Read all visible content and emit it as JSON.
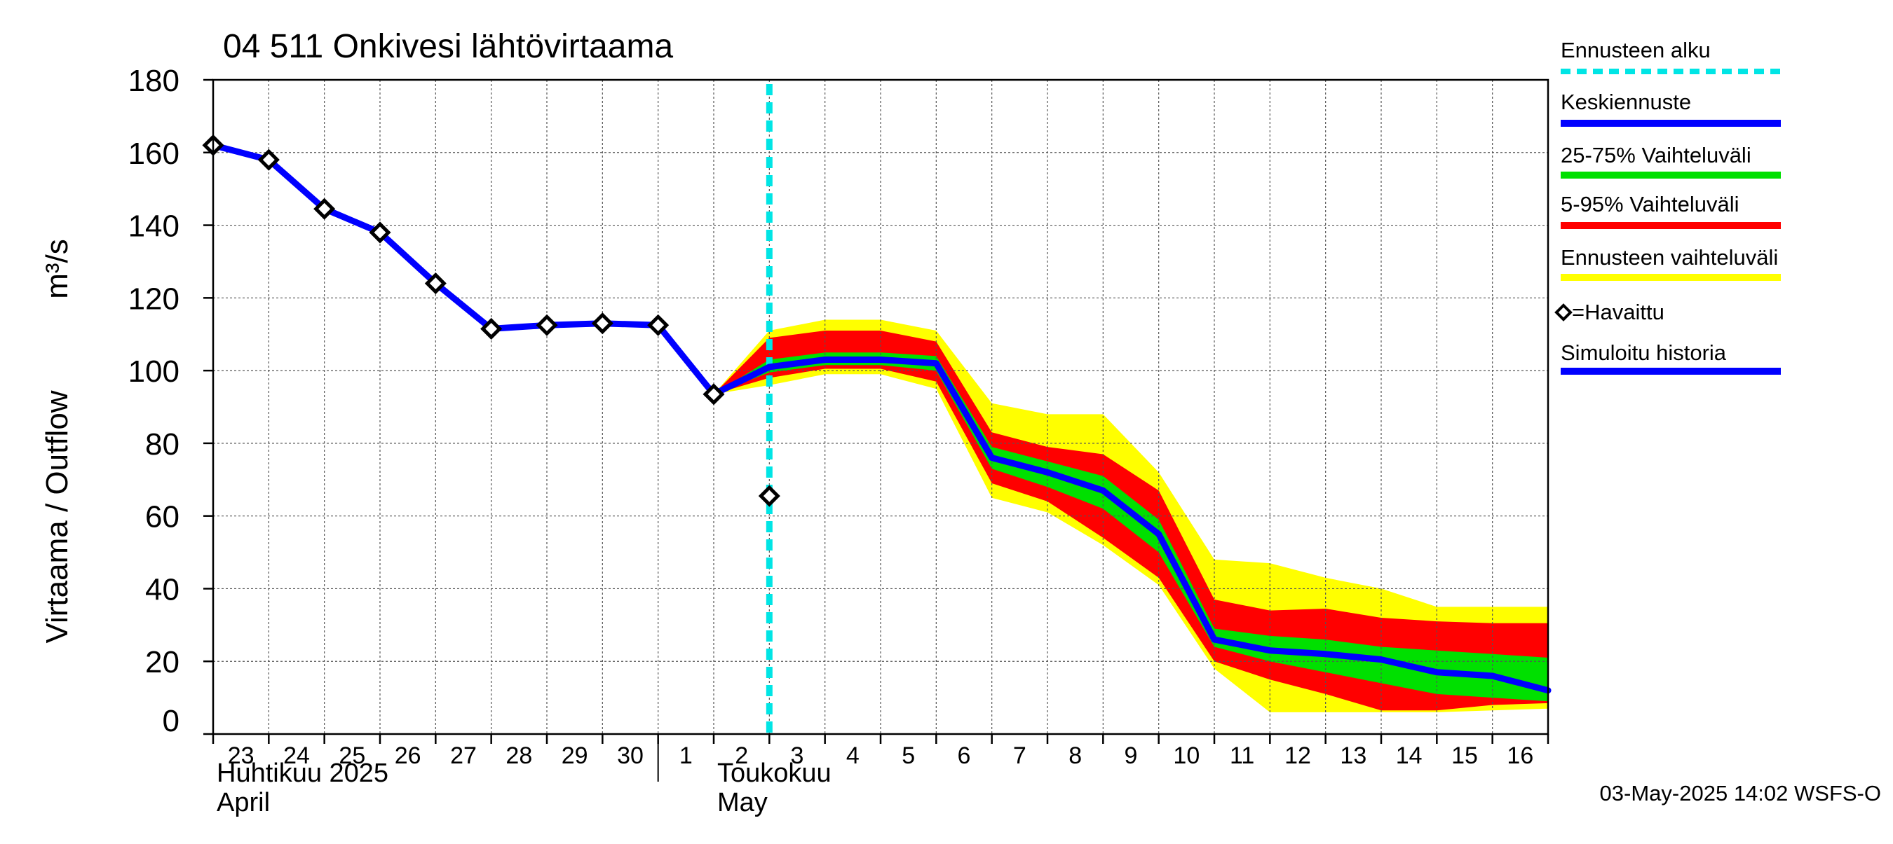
{
  "chart_data": {
    "type": "line",
    "title": "04 511 Onkivesi lähtövirtaama",
    "ylabel": "Virtaama / Outflow",
    "yunit": "m³/s",
    "ylim": [
      0,
      180
    ],
    "yticks": [
      0,
      20,
      40,
      60,
      80,
      100,
      120,
      140,
      160,
      180
    ],
    "xlim": [
      "2025-04-23",
      "2025-05-17"
    ],
    "xtick_labels": [
      {
        "date": "2025-04-23",
        "label": "23"
      },
      {
        "date": "2025-04-24",
        "label": "24"
      },
      {
        "date": "2025-04-25",
        "label": "25"
      },
      {
        "date": "2025-04-26",
        "label": "26"
      },
      {
        "date": "2025-04-27",
        "label": "27"
      },
      {
        "date": "2025-04-28",
        "label": "28"
      },
      {
        "date": "2025-04-29",
        "label": "29"
      },
      {
        "date": "2025-04-30",
        "label": "30"
      },
      {
        "date": "2025-05-01",
        "label": "1"
      },
      {
        "date": "2025-05-02",
        "label": "2"
      },
      {
        "date": "2025-05-03",
        "label": "3"
      },
      {
        "date": "2025-05-04",
        "label": "4"
      },
      {
        "date": "2025-05-05",
        "label": "5"
      },
      {
        "date": "2025-05-06",
        "label": "6"
      },
      {
        "date": "2025-05-07",
        "label": "7"
      },
      {
        "date": "2025-05-08",
        "label": "8"
      },
      {
        "date": "2025-05-09",
        "label": "9"
      },
      {
        "date": "2025-05-10",
        "label": "10"
      },
      {
        "date": "2025-05-11",
        "label": "11"
      },
      {
        "date": "2025-05-12",
        "label": "12"
      },
      {
        "date": "2025-05-13",
        "label": "13"
      },
      {
        "date": "2025-05-14",
        "label": "14"
      },
      {
        "date": "2025-05-15",
        "label": "15"
      },
      {
        "date": "2025-05-16",
        "label": "16"
      }
    ],
    "month_labels": [
      {
        "date": "2025-04-23",
        "line1": "Huhtikuu  2025",
        "line2": "April"
      },
      {
        "date": "2025-05-02",
        "line1": "Toukokuu",
        "line2": "May"
      }
    ],
    "month_divider": "2025-05-01",
    "forecast_start": "2025-05-03",
    "grid": true,
    "legend_position": "right",
    "legend": [
      {
        "label": "Ennusteen alku",
        "color": "#00e5e5",
        "style": "dashed"
      },
      {
        "label": "Keskiennuste",
        "color": "#0000ff",
        "style": "solid"
      },
      {
        "label": "25-75% Vaihteluväli",
        "color": "#00e000",
        "style": "solid"
      },
      {
        "label": "5-95% Vaihteluväli",
        "color": "#ff0000",
        "style": "solid"
      },
      {
        "label": "Ennusteen vaihteluväli",
        "color": "#ffff00",
        "style": "solid"
      },
      {
        "label": "=Havaittu",
        "color": "#000000",
        "style": "marker"
      },
      {
        "label": "Simuloitu historia",
        "color": "#0000ff",
        "style": "solid"
      }
    ],
    "footer": "03-May-2025 14:02 WSFS-O",
    "series": [
      {
        "name": "Simuloitu historia",
        "color": "#0000ff",
        "points": [
          {
            "x": "2025-04-23",
            "y": 162
          },
          {
            "x": "2025-04-24",
            "y": 158
          },
          {
            "x": "2025-04-25",
            "y": 144.5
          },
          {
            "x": "2025-04-26",
            "y": 138
          },
          {
            "x": "2025-04-27",
            "y": 124
          },
          {
            "x": "2025-04-28",
            "y": 111.5
          },
          {
            "x": "2025-04-29",
            "y": 112.5
          },
          {
            "x": "2025-04-30",
            "y": 113
          },
          {
            "x": "2025-05-01",
            "y": 112.5
          },
          {
            "x": "2025-05-02",
            "y": 93.5
          }
        ]
      },
      {
        "name": "Keskiennuste",
        "color": "#0000ff",
        "points": [
          {
            "x": "2025-05-02",
            "y": 93.5
          },
          {
            "x": "2025-05-03",
            "y": 101
          },
          {
            "x": "2025-05-04",
            "y": 103
          },
          {
            "x": "2025-05-05",
            "y": 103
          },
          {
            "x": "2025-05-06",
            "y": 102
          },
          {
            "x": "2025-05-07",
            "y": 76
          },
          {
            "x": "2025-05-08",
            "y": 72
          },
          {
            "x": "2025-05-09",
            "y": 67
          },
          {
            "x": "2025-05-10",
            "y": 55
          },
          {
            "x": "2025-05-11",
            "y": 26
          },
          {
            "x": "2025-05-12",
            "y": 23
          },
          {
            "x": "2025-05-13",
            "y": 22
          },
          {
            "x": "2025-05-14",
            "y": 20.5
          },
          {
            "x": "2025-05-15",
            "y": 17
          },
          {
            "x": "2025-05-16",
            "y": 16
          },
          {
            "x": "2025-05-17",
            "y": 12
          }
        ]
      }
    ],
    "bands": [
      {
        "name": "Ennusteen vaihteluväli",
        "color": "#ffff00",
        "points": [
          {
            "x": "2025-05-02",
            "lo": 93.5,
            "hi": 93.5
          },
          {
            "x": "2025-05-03",
            "lo": 96,
            "hi": 111
          },
          {
            "x": "2025-05-04",
            "lo": 99,
            "hi": 114
          },
          {
            "x": "2025-05-05",
            "lo": 99,
            "hi": 114
          },
          {
            "x": "2025-05-06",
            "lo": 95,
            "hi": 111
          },
          {
            "x": "2025-05-07",
            "lo": 65,
            "hi": 91
          },
          {
            "x": "2025-05-08",
            "lo": 61,
            "hi": 88
          },
          {
            "x": "2025-05-09",
            "lo": 52,
            "hi": 88
          },
          {
            "x": "2025-05-10",
            "lo": 41,
            "hi": 72
          },
          {
            "x": "2025-05-11",
            "lo": 18,
            "hi": 48
          },
          {
            "x": "2025-05-12",
            "lo": 6,
            "hi": 47
          },
          {
            "x": "2025-05-13",
            "lo": 6,
            "hi": 43
          },
          {
            "x": "2025-05-14",
            "lo": 6,
            "hi": 40
          },
          {
            "x": "2025-05-15",
            "lo": 6,
            "hi": 35
          },
          {
            "x": "2025-05-16",
            "lo": 6.5,
            "hi": 35
          },
          {
            "x": "2025-05-17",
            "lo": 7,
            "hi": 35
          }
        ]
      },
      {
        "name": "5-95% Vaihteluväli",
        "color": "#ff0000",
        "points": [
          {
            "x": "2025-05-02",
            "lo": 93.5,
            "hi": 93.5
          },
          {
            "x": "2025-05-03",
            "lo": 98,
            "hi": 109
          },
          {
            "x": "2025-05-04",
            "lo": 100.5,
            "hi": 111
          },
          {
            "x": "2025-05-05",
            "lo": 100.5,
            "hi": 111
          },
          {
            "x": "2025-05-06",
            "lo": 97,
            "hi": 108
          },
          {
            "x": "2025-05-07",
            "lo": 69,
            "hi": 83
          },
          {
            "x": "2025-05-08",
            "lo": 64,
            "hi": 79
          },
          {
            "x": "2025-05-09",
            "lo": 54,
            "hi": 77
          },
          {
            "x": "2025-05-10",
            "lo": 43,
            "hi": 67
          },
          {
            "x": "2025-05-11",
            "lo": 20,
            "hi": 37
          },
          {
            "x": "2025-05-12",
            "lo": 15,
            "hi": 34
          },
          {
            "x": "2025-05-13",
            "lo": 11,
            "hi": 34.5
          },
          {
            "x": "2025-05-14",
            "lo": 6.5,
            "hi": 32
          },
          {
            "x": "2025-05-15",
            "lo": 6.5,
            "hi": 31
          },
          {
            "x": "2025-05-16",
            "lo": 8,
            "hi": 30.5
          },
          {
            "x": "2025-05-17",
            "lo": 8.5,
            "hi": 30.5
          }
        ]
      },
      {
        "name": "25-75% Vaihteluväli",
        "color": "#00e000",
        "points": [
          {
            "x": "2025-05-02",
            "lo": 93.5,
            "hi": 93.5
          },
          {
            "x": "2025-05-03",
            "lo": 99.5,
            "hi": 103
          },
          {
            "x": "2025-05-04",
            "lo": 101.5,
            "hi": 105
          },
          {
            "x": "2025-05-05",
            "lo": 101.5,
            "hi": 105
          },
          {
            "x": "2025-05-06",
            "lo": 100,
            "hi": 104
          },
          {
            "x": "2025-05-07",
            "lo": 73,
            "hi": 79
          },
          {
            "x": "2025-05-08",
            "lo": 68,
            "hi": 75
          },
          {
            "x": "2025-05-09",
            "lo": 62,
            "hi": 71
          },
          {
            "x": "2025-05-10",
            "lo": 50,
            "hi": 59
          },
          {
            "x": "2025-05-11",
            "lo": 24,
            "hi": 29
          },
          {
            "x": "2025-05-12",
            "lo": 20,
            "hi": 27
          },
          {
            "x": "2025-05-13",
            "lo": 17,
            "hi": 26
          },
          {
            "x": "2025-05-14",
            "lo": 14,
            "hi": 24
          },
          {
            "x": "2025-05-15",
            "lo": 11,
            "hi": 23
          },
          {
            "x": "2025-05-16",
            "lo": 10,
            "hi": 22
          },
          {
            "x": "2025-05-17",
            "lo": 9,
            "hi": 21
          }
        ]
      }
    ],
    "observed": {
      "name": "Havaittu",
      "points": [
        {
          "x": "2025-04-23",
          "y": 162
        },
        {
          "x": "2025-04-24",
          "y": 158
        },
        {
          "x": "2025-04-25",
          "y": 144.5
        },
        {
          "x": "2025-04-26",
          "y": 138
        },
        {
          "x": "2025-04-27",
          "y": 124
        },
        {
          "x": "2025-04-28",
          "y": 111.5
        },
        {
          "x": "2025-04-29",
          "y": 112.5
        },
        {
          "x": "2025-04-30",
          "y": 113
        },
        {
          "x": "2025-05-01",
          "y": 112.5
        },
        {
          "x": "2025-05-02",
          "y": 93.5
        },
        {
          "x": "2025-05-03",
          "y": 65.5
        }
      ]
    }
  }
}
